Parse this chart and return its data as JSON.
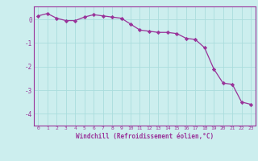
{
  "x": [
    0,
    1,
    2,
    3,
    4,
    5,
    6,
    7,
    8,
    9,
    10,
    11,
    12,
    13,
    14,
    15,
    16,
    17,
    18,
    19,
    20,
    21,
    22,
    23
  ],
  "y": [
    0.15,
    0.25,
    0.05,
    -0.05,
    -0.05,
    0.1,
    0.2,
    0.15,
    0.1,
    0.05,
    -0.2,
    -0.45,
    -0.5,
    -0.55,
    -0.55,
    -0.6,
    -0.8,
    -0.85,
    -1.2,
    -2.1,
    -2.7,
    -2.75,
    -3.5,
    -3.6
  ],
  "line_color": "#993399",
  "marker": "D",
  "marker_size": 2.2,
  "bg_color": "#cceeee",
  "grid_color": "#aadddd",
  "xlabel": "Windchill (Refroidissement éolien,°C)",
  "xlabel_color": "#993399",
  "tick_color": "#993399",
  "spine_color": "#993399",
  "ylim": [
    -4.5,
    0.55
  ],
  "xlim": [
    -0.5,
    23.5
  ],
  "yticks": [
    -4,
    -3,
    -2,
    -1,
    0
  ],
  "xticks": [
    0,
    1,
    2,
    3,
    4,
    5,
    6,
    7,
    8,
    9,
    10,
    11,
    12,
    13,
    14,
    15,
    16,
    17,
    18,
    19,
    20,
    21,
    22,
    23
  ]
}
